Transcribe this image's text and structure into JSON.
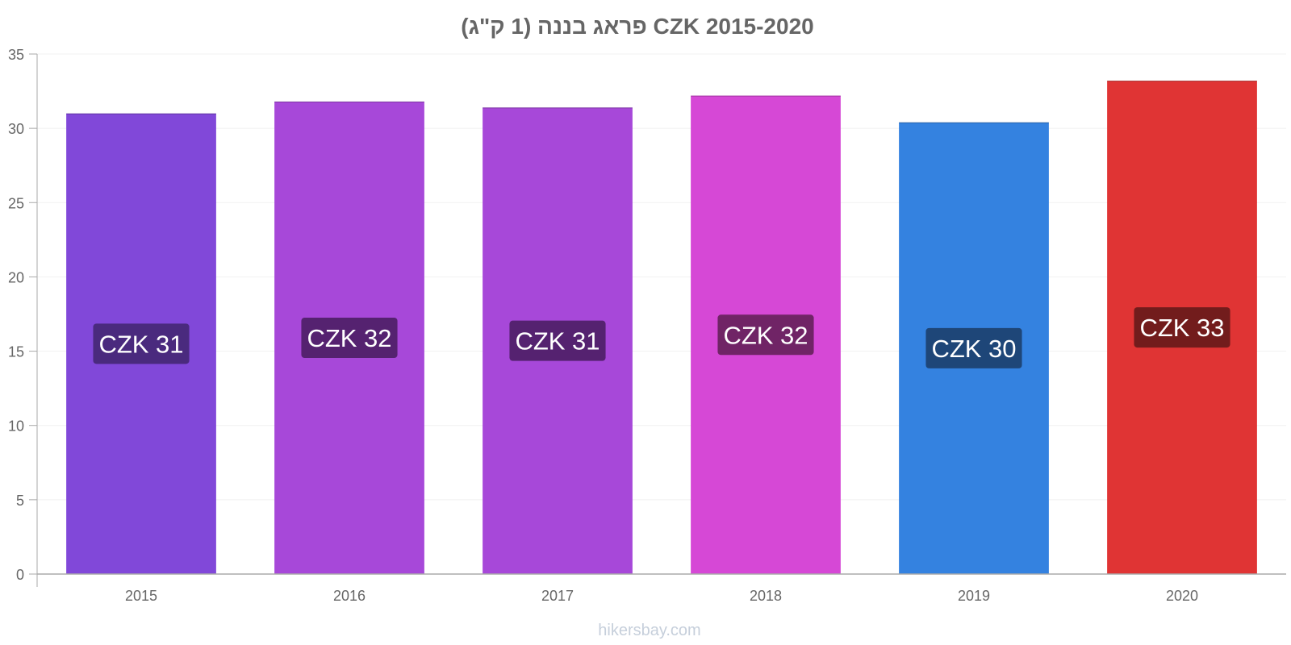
{
  "chart_data": {
    "type": "bar",
    "title": "פראג בננה (1 ק\"ג) CZK 2015-2020",
    "categories": [
      "2015",
      "2016",
      "2017",
      "2018",
      "2019",
      "2020"
    ],
    "values": [
      31.0,
      31.8,
      31.4,
      32.2,
      30.4,
      33.2
    ],
    "data_labels": [
      "CZK 31",
      "CZK 32",
      "CZK 31",
      "CZK 32",
      "CZK 30",
      "CZK 33"
    ],
    "bar_colors": [
      "#8148d9",
      "#a748d9",
      "#a748d9",
      "#d648d6",
      "#3482e0",
      "#e03434"
    ],
    "label_bg_colors": [
      "#4a2a7e",
      "#552270",
      "#552270",
      "#702466",
      "#1e4678",
      "#721c1c"
    ],
    "ylim": [
      0,
      35
    ],
    "yticks": [
      0,
      5,
      10,
      15,
      20,
      25,
      30,
      35
    ],
    "xlabel": "",
    "ylabel": "",
    "grid": true,
    "legend": "none"
  },
  "watermark": "hikersbay.com"
}
